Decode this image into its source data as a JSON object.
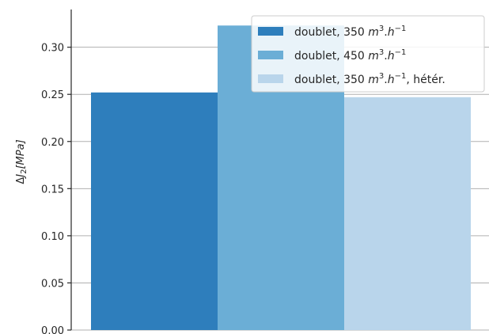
{
  "chart_data": {
    "type": "bar",
    "ylabel": "Δ J₂ [MPa]",
    "ylabel_parts": {
      "symbol": "Δ",
      "var": "J",
      "sub": "2",
      "unit": "[MPa]"
    },
    "ylim": [
      0,
      0.34
    ],
    "yticks": [
      0.0,
      0.05,
      0.1,
      0.15,
      0.2,
      0.25,
      0.3
    ],
    "ytick_labels": [
      "0.00",
      "0.05",
      "0.10",
      "0.15",
      "0.20",
      "0.25",
      "0.30"
    ],
    "grid": "horizontal",
    "legend_position": "top-right",
    "series": [
      {
        "name": "doublet, 350 m³.h⁻¹",
        "value": 0.252,
        "color": "#2e7ebc",
        "legend": {
          "prefix": "doublet, 350 ",
          "m": "m",
          "exp1": "3",
          "mid": ".",
          "h": "h",
          "exp2": "−1",
          "suffix": ""
        }
      },
      {
        "name": "doublet, 450 m³.h⁻¹",
        "value": 0.323,
        "color": "#6baed6",
        "legend": {
          "prefix": "doublet, 450 ",
          "m": "m",
          "exp1": "3",
          "mid": ".",
          "h": "h",
          "exp2": "−1",
          "suffix": ""
        }
      },
      {
        "name": "doublet, 350 m³.h⁻¹, hétér.",
        "value": 0.247,
        "color": "#b9d5eb",
        "legend": {
          "prefix": "doublet, 350 ",
          "m": "m",
          "exp1": "3",
          "mid": ".",
          "h": "h",
          "exp2": "−1",
          "suffix": ", hétér."
        }
      }
    ]
  }
}
